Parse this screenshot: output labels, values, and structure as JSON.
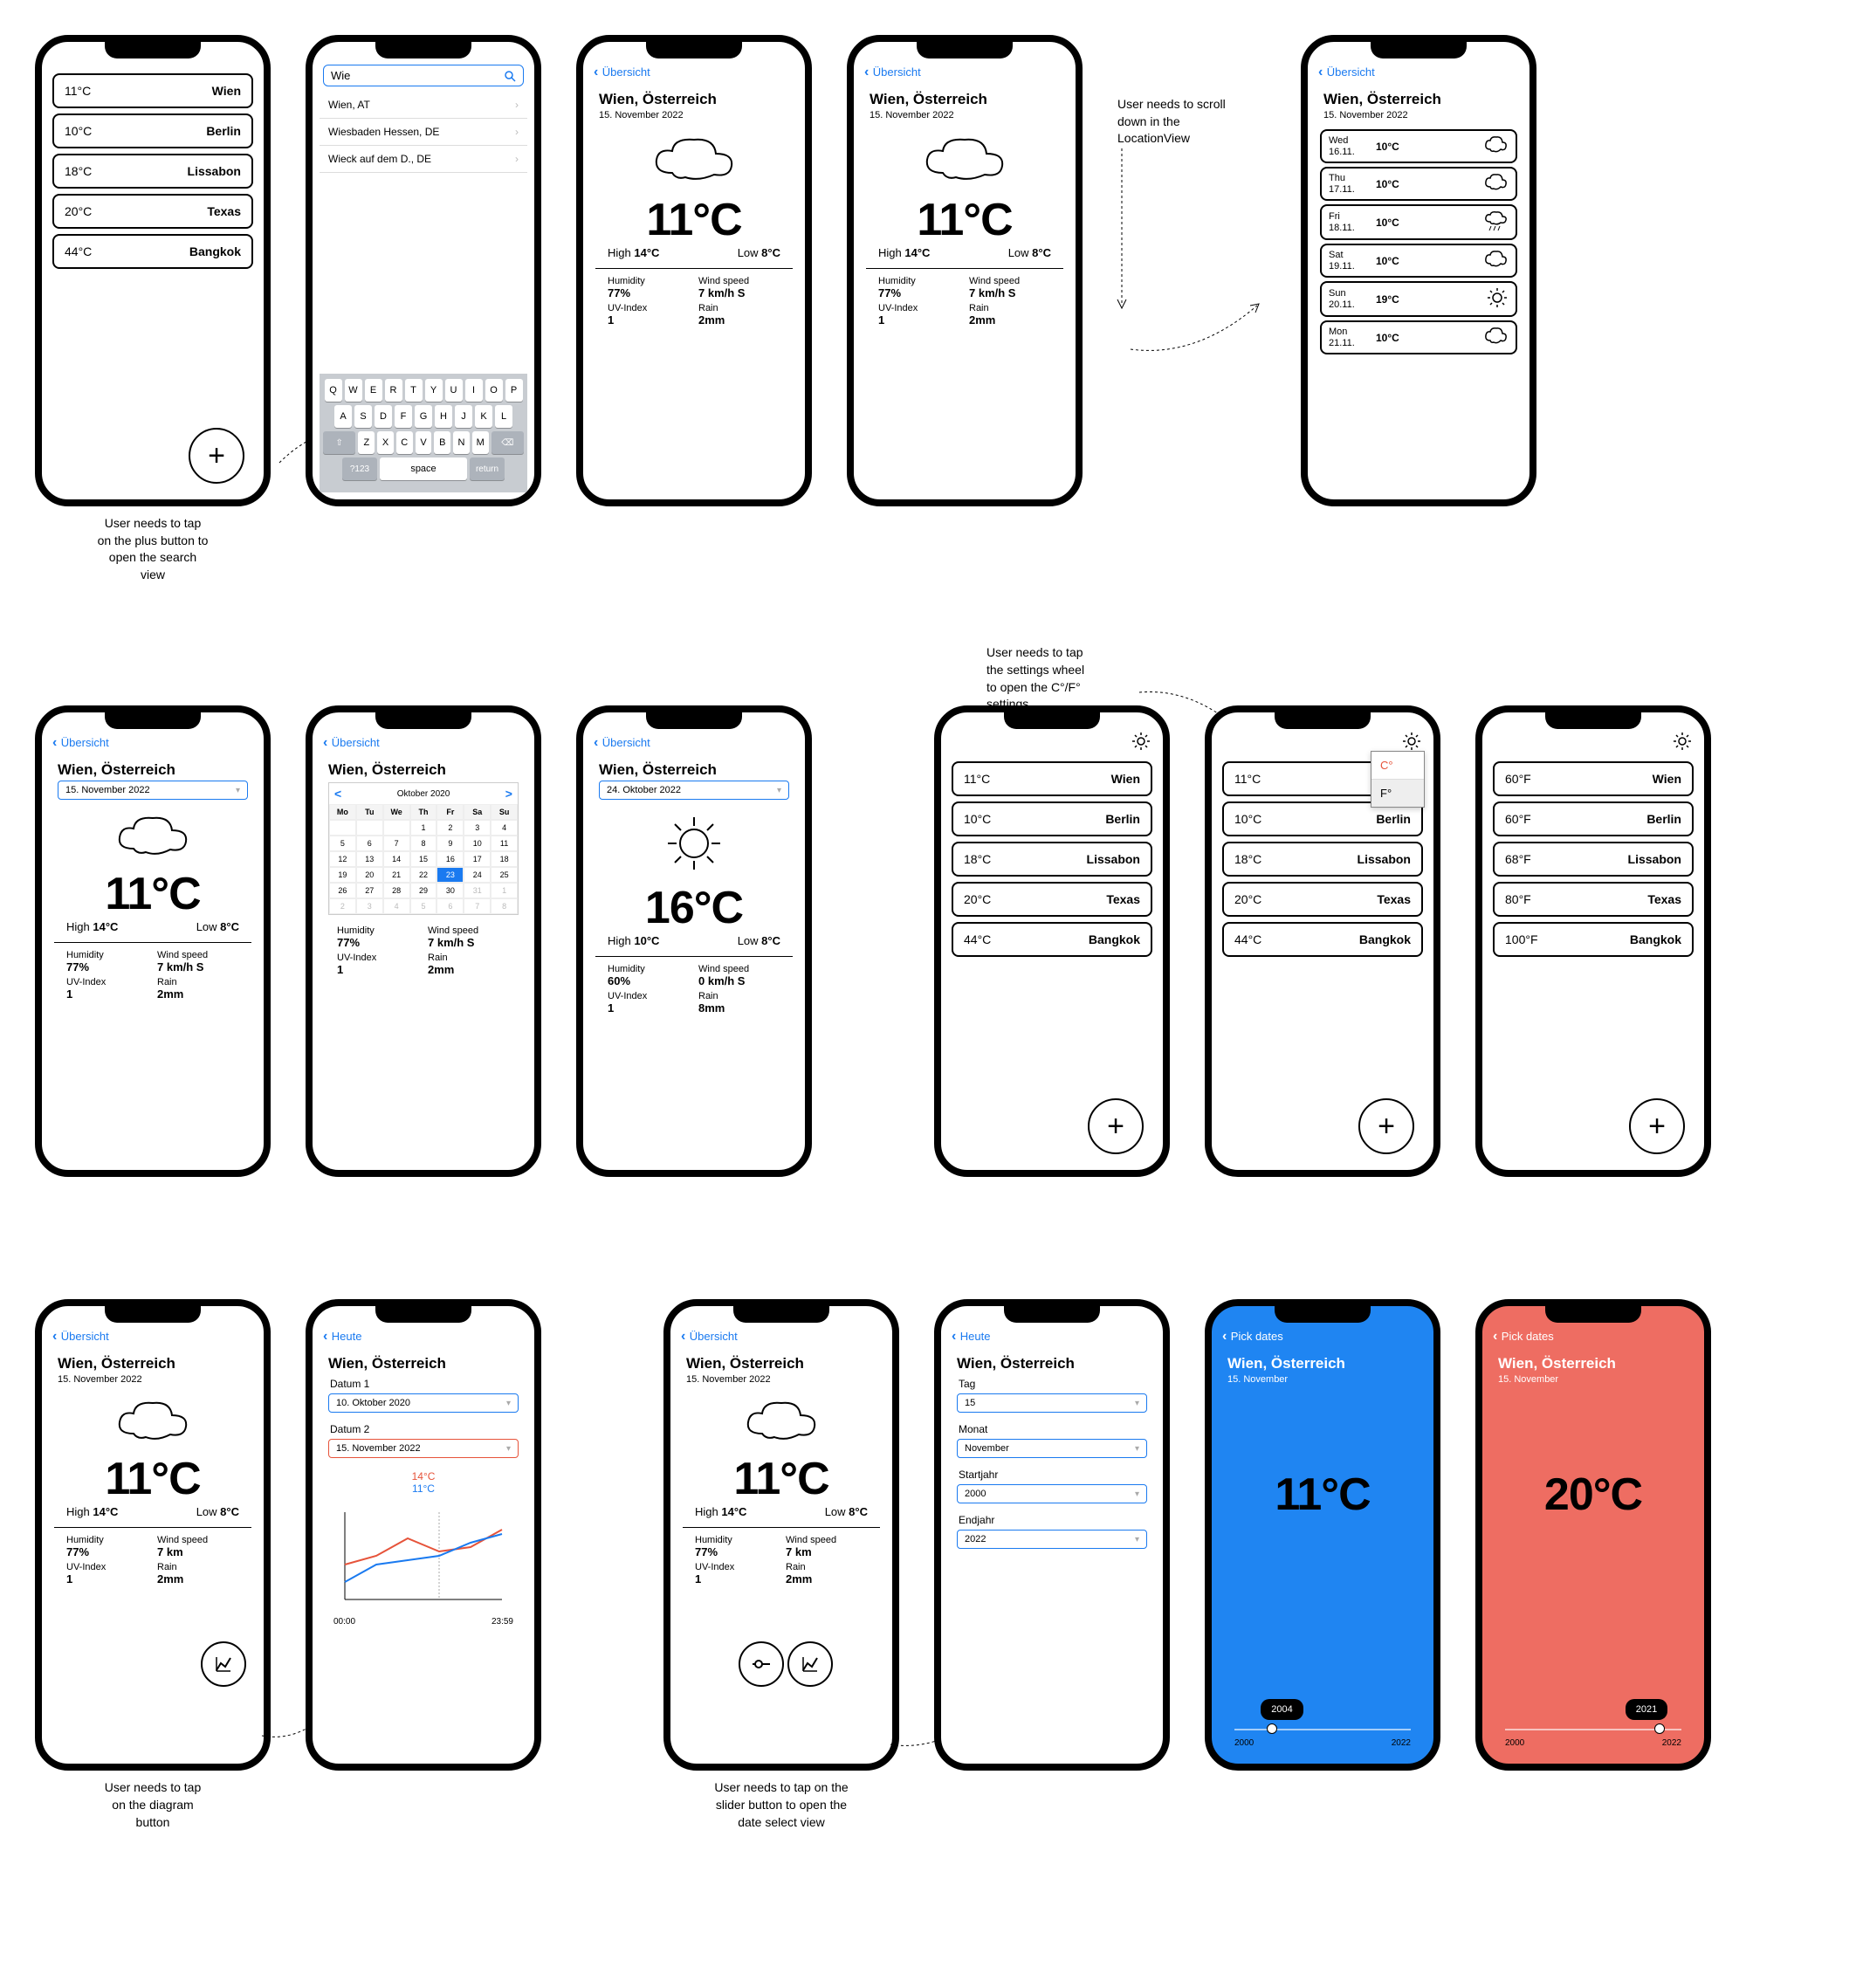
{
  "colors": {
    "link": "#1a7af0",
    "red": "#e6533a",
    "blueBg": "#1f85f2",
    "redBg": "#ee6d62",
    "gridFade": "#bbbbbb"
  },
  "backLabel": "Übersicht",
  "heuteLabel": "Heute",
  "pickDatesLabel": "Pick dates",
  "notes": {
    "plus": "User needs to tap\non the plus button to\nopen the search\nview",
    "scroll": "User needs to scroll\ndown in the\nLocationView",
    "settings": "User needs to tap\nthe settings wheel\nto open the C°/F°\nsettings",
    "diagram": "User needs to tap\non the diagram\nbutton",
    "slider": "User needs to tap on the\nslider button to open the\ndate select view"
  },
  "citiesC": [
    {
      "temp": "11°C",
      "name": "Wien"
    },
    {
      "temp": "10°C",
      "name": "Berlin"
    },
    {
      "temp": "18°C",
      "name": "Lissabon"
    },
    {
      "temp": "20°C",
      "name": "Texas"
    },
    {
      "temp": "44°C",
      "name": "Bangkok"
    }
  ],
  "citiesF": [
    {
      "temp": "60°F",
      "name": "Wien"
    },
    {
      "temp": "60°F",
      "name": "Berlin"
    },
    {
      "temp": "68°F",
      "name": "Lissabon"
    },
    {
      "temp": "80°F",
      "name": "Texas"
    },
    {
      "temp": "100°F",
      "name": "Bangkok"
    }
  ],
  "search": {
    "query": "Wie",
    "results": [
      "Wien, AT",
      "Wiesbaden Hessen, DE",
      "Wieck auf dem D., DE"
    ]
  },
  "keyboard": {
    "r1": [
      "Q",
      "W",
      "E",
      "R",
      "T",
      "Y",
      "U",
      "I",
      "O",
      "P"
    ],
    "r2": [
      "A",
      "S",
      "D",
      "F",
      "G",
      "H",
      "J",
      "K",
      "L"
    ],
    "r3": [
      "Z",
      "X",
      "C",
      "V",
      "B",
      "N",
      "M"
    ],
    "shift": "⇧",
    "del": "⌫",
    "num": "?123",
    "space": "space",
    "ret": "return"
  },
  "loc": {
    "title": "Wien, Österreich",
    "date": "15. November 2022",
    "temp": "11°C",
    "highLbl": "High",
    "high": "14°C",
    "lowLbl": "Low",
    "low": "8°C",
    "humLbl": "Humidity",
    "hum": "77%",
    "windLbl": "Wind speed",
    "wind": "7 km/h S",
    "uvLbl": "UV-Index",
    "uv": "1",
    "rainLbl": "Rain",
    "rain": "2mm"
  },
  "loc24": {
    "date": "24. Oktober 2022",
    "temp": "16°C",
    "high": "10°C",
    "low": "8°C",
    "hum": "60%",
    "wind": "0 km/h S",
    "uv": "1",
    "rain": "8mm"
  },
  "forecast": [
    {
      "day": "Wed",
      "date": "16.11.",
      "t": "10°C",
      "icon": "cloud"
    },
    {
      "day": "Thu",
      "date": "17.11.",
      "t": "10°C",
      "icon": "cloud"
    },
    {
      "day": "Fri",
      "date": "18.11.",
      "t": "10°C",
      "icon": "rain"
    },
    {
      "day": "Sat",
      "date": "19.11.",
      "t": "10°C",
      "icon": "cloud"
    },
    {
      "day": "Sun",
      "date": "20.11.",
      "t": "19°C",
      "icon": "sun"
    },
    {
      "day": "Mon",
      "date": "21.11.",
      "t": "10°C",
      "icon": "cloud"
    }
  ],
  "calendar": {
    "month": "Oktober 2020",
    "days": [
      "Mo",
      "Tu",
      "We",
      "Th",
      "Fr",
      "Sa",
      "Su"
    ],
    "cells": [
      "",
      "",
      "",
      "1",
      "2",
      "3",
      "4",
      "5",
      "6",
      "7",
      "8",
      "9",
      "10",
      "11",
      "12",
      "13",
      "14",
      "15",
      "16",
      "17",
      "18",
      "19",
      "20",
      "21",
      "22",
      "23",
      "24",
      "25",
      "26",
      "27",
      "28",
      "29",
      "30",
      "31",
      "1",
      "2",
      "3",
      "4",
      "5",
      "6",
      "7",
      "8"
    ],
    "selectedIndex": 25,
    "dimFrom": 33
  },
  "units": {
    "c": "C°",
    "f": "F°"
  },
  "diagram": {
    "datum1Lbl": "Datum 1",
    "datum1": "10. Oktober 2020",
    "datum2Lbl": "Datum 2",
    "datum2": "15. November 2022",
    "t1": "14°C",
    "t2": "11°C",
    "xStart": "00:00",
    "xEnd": "23:59",
    "series1Color": "#e6533a",
    "series2Color": "#1a7af0",
    "series1": [
      60,
      50,
      30,
      45,
      40,
      20
    ],
    "series2": [
      80,
      60,
      55,
      50,
      35,
      25
    ]
  },
  "dateSelect": {
    "tagLbl": "Tag",
    "tag": "15",
    "monatLbl": "Monat",
    "monat": "November",
    "startLbl": "Startjahr",
    "start": "2000",
    "endLbl": "Endjahr",
    "end": "2022"
  },
  "compare": {
    "subtitle": "15. November",
    "a": {
      "bg": "#1f85f2",
      "temp": "11°C",
      "year": "2004",
      "min": "2000",
      "max": "2022",
      "thumbPct": 18
    },
    "b": {
      "bg": "#ee6d62",
      "temp": "20°C",
      "year": "2021",
      "min": "2000",
      "max": "2022",
      "thumbPct": 82
    }
  }
}
